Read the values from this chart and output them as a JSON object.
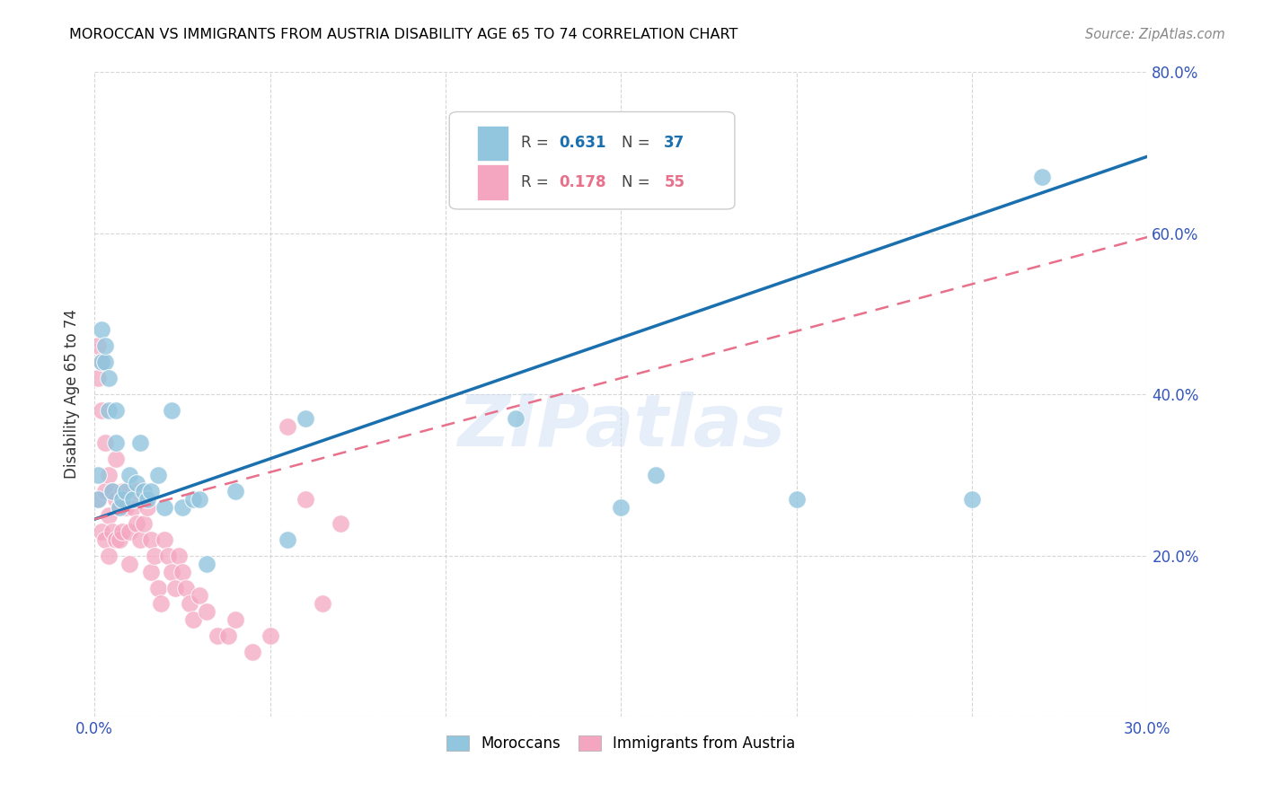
{
  "title": "MOROCCAN VS IMMIGRANTS FROM AUSTRIA DISABILITY AGE 65 TO 74 CORRELATION CHART",
  "source": "Source: ZipAtlas.com",
  "ylabel": "Disability Age 65 to 74",
  "xlim": [
    0.0,
    0.3
  ],
  "ylim": [
    0.0,
    0.8
  ],
  "moroccan_R": 0.631,
  "moroccan_N": 37,
  "austria_R": 0.178,
  "austria_N": 55,
  "moroccan_color": "#92c5de",
  "austria_color": "#f4a6c0",
  "trend_moroccan_color": "#1a6faf",
  "trend_austria_color": "#e8708a",
  "watermark": "ZIPatlas",
  "moroccan_trend_x0": 0.0,
  "moroccan_trend_y0": 0.245,
  "moroccan_trend_x1": 0.3,
  "moroccan_trend_y1": 0.695,
  "austria_trend_x0": 0.0,
  "austria_trend_y0": 0.245,
  "austria_trend_x1": 0.3,
  "austria_trend_y1": 0.595,
  "moroccan_x": [
    0.001,
    0.001,
    0.002,
    0.002,
    0.003,
    0.003,
    0.004,
    0.004,
    0.005,
    0.006,
    0.006,
    0.007,
    0.008,
    0.009,
    0.01,
    0.011,
    0.012,
    0.013,
    0.014,
    0.015,
    0.016,
    0.018,
    0.02,
    0.022,
    0.025,
    0.028,
    0.03,
    0.032,
    0.04,
    0.055,
    0.06,
    0.12,
    0.15,
    0.16,
    0.2,
    0.25,
    0.27
  ],
  "moroccan_y": [
    0.27,
    0.3,
    0.48,
    0.44,
    0.44,
    0.46,
    0.42,
    0.38,
    0.28,
    0.38,
    0.34,
    0.26,
    0.27,
    0.28,
    0.3,
    0.27,
    0.29,
    0.34,
    0.28,
    0.27,
    0.28,
    0.3,
    0.26,
    0.38,
    0.26,
    0.27,
    0.27,
    0.19,
    0.28,
    0.22,
    0.37,
    0.37,
    0.26,
    0.3,
    0.27,
    0.27,
    0.67
  ],
  "austria_x": [
    0.001,
    0.001,
    0.001,
    0.002,
    0.002,
    0.002,
    0.003,
    0.003,
    0.003,
    0.004,
    0.004,
    0.004,
    0.005,
    0.005,
    0.006,
    0.006,
    0.006,
    0.007,
    0.007,
    0.008,
    0.008,
    0.009,
    0.01,
    0.01,
    0.011,
    0.012,
    0.012,
    0.013,
    0.014,
    0.015,
    0.016,
    0.016,
    0.017,
    0.018,
    0.019,
    0.02,
    0.021,
    0.022,
    0.023,
    0.024,
    0.025,
    0.026,
    0.027,
    0.028,
    0.03,
    0.032,
    0.035,
    0.038,
    0.04,
    0.045,
    0.05,
    0.055,
    0.06,
    0.065,
    0.07
  ],
  "austria_y": [
    0.46,
    0.42,
    0.27,
    0.44,
    0.38,
    0.23,
    0.34,
    0.28,
    0.22,
    0.3,
    0.25,
    0.2,
    0.28,
    0.23,
    0.32,
    0.27,
    0.22,
    0.26,
    0.22,
    0.28,
    0.23,
    0.26,
    0.23,
    0.19,
    0.26,
    0.28,
    0.24,
    0.22,
    0.24,
    0.26,
    0.22,
    0.18,
    0.2,
    0.16,
    0.14,
    0.22,
    0.2,
    0.18,
    0.16,
    0.2,
    0.18,
    0.16,
    0.14,
    0.12,
    0.15,
    0.13,
    0.1,
    0.1,
    0.12,
    0.08,
    0.1,
    0.36,
    0.27,
    0.14,
    0.24
  ]
}
